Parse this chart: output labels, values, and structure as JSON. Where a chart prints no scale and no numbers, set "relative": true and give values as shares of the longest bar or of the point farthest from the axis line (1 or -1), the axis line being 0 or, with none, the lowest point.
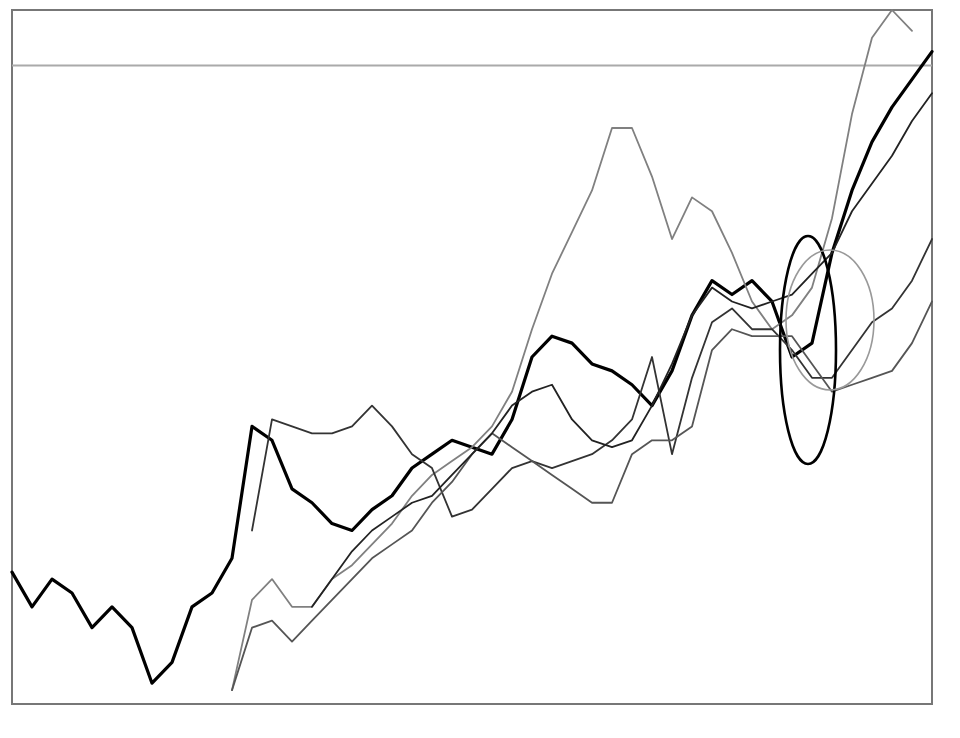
{
  "chart_data": {
    "type": "line",
    "relative": true,
    "categories": [
      null,
      null,
      null,
      null,
      null,
      null,
      null,
      null,
      null,
      null,
      null,
      null,
      null,
      null,
      null,
      null,
      null,
      null,
      null,
      null,
      null,
      null,
      null,
      null,
      null,
      null,
      null,
      null,
      null,
      null,
      null,
      null,
      null,
      null,
      null,
      null,
      null,
      null,
      null,
      null,
      null,
      null,
      null,
      null,
      null,
      null,
      null
    ],
    "ref_lines": [
      {
        "axis": "y",
        "value": 0.92,
        "color": "#aaaaaa"
      }
    ],
    "series": [
      {
        "color": "#000000",
        "values": [
          0.19,
          0.14,
          0.18,
          0.16,
          0.11,
          0.14,
          0.11,
          0.03,
          0.06,
          0.14,
          0.16,
          0.21,
          0.4,
          0.38,
          0.31,
          0.29,
          0.26,
          0.25,
          0.28,
          0.3,
          0.34,
          0.36,
          0.38,
          0.37,
          0.36,
          0.41,
          0.5,
          0.53,
          0.52,
          0.49,
          0.48,
          0.46,
          0.43,
          0.48,
          0.56,
          0.61,
          0.59,
          0.61,
          0.58,
          0.5,
          0.52,
          0.65,
          0.74,
          0.81,
          0.86,
          0.9,
          0.94
        ]
      },
      {
        "color": "#808080",
        "values": [
          null,
          null,
          null,
          null,
          null,
          null,
          null,
          null,
          null,
          null,
          null,
          0.02,
          0.15,
          0.18,
          0.14,
          0.14,
          0.18,
          0.2,
          0.23,
          0.26,
          0.3,
          0.33,
          0.35,
          0.37,
          0.4,
          0.45,
          0.54,
          0.62,
          0.68,
          0.74,
          0.83,
          0.83,
          0.76,
          0.67,
          0.73,
          0.71,
          0.65,
          0.58,
          0.54,
          0.56,
          0.6,
          0.7,
          0.85,
          0.96,
          1,
          0.97,
          null
        ]
      },
      {
        "color": "#333333",
        "values": [
          null,
          null,
          null,
          null,
          null,
          null,
          null,
          null,
          null,
          null,
          null,
          null,
          0.25,
          0.41,
          0.4,
          0.39,
          0.39,
          0.4,
          0.43,
          0.4,
          0.36,
          0.34,
          0.27,
          0.28,
          0.31,
          0.34,
          0.35,
          0.34,
          0.35,
          0.36,
          0.38,
          0.41,
          0.5,
          0.36,
          0.47,
          0.55,
          0.57,
          0.54,
          0.54,
          0.51,
          0.47,
          0.47,
          0.51,
          0.55,
          0.57,
          0.61,
          0.67
        ]
      },
      {
        "color": "#555555",
        "values": [
          null,
          null,
          null,
          null,
          null,
          null,
          null,
          null,
          null,
          null,
          null,
          0.02,
          0.11,
          0.12,
          0.09,
          0.12,
          0.15,
          0.18,
          0.21,
          0.23,
          0.25,
          0.29,
          0.32,
          0.36,
          0.39,
          0.37,
          0.35,
          0.33,
          0.31,
          0.29,
          0.29,
          0.36,
          0.38,
          0.38,
          0.4,
          0.51,
          0.54,
          0.53,
          0.53,
          0.53,
          0.49,
          0.45,
          0.46,
          0.47,
          0.48,
          0.52,
          0.58
        ]
      },
      {
        "color": "#222222",
        "values": [
          null,
          null,
          null,
          null,
          null,
          null,
          null,
          null,
          null,
          null,
          null,
          null,
          null,
          null,
          null,
          0.14,
          0.18,
          0.22,
          0.25,
          0.27,
          0.29,
          0.3,
          0.33,
          0.36,
          0.39,
          0.43,
          0.45,
          0.46,
          0.41,
          0.38,
          0.37,
          0.38,
          0.43,
          0.49,
          0.56,
          0.6,
          0.58,
          0.57,
          0.58,
          0.59,
          0.62,
          0.65,
          0.71,
          0.75,
          0.79,
          0.84,
          0.88
        ]
      }
    ]
  }
}
